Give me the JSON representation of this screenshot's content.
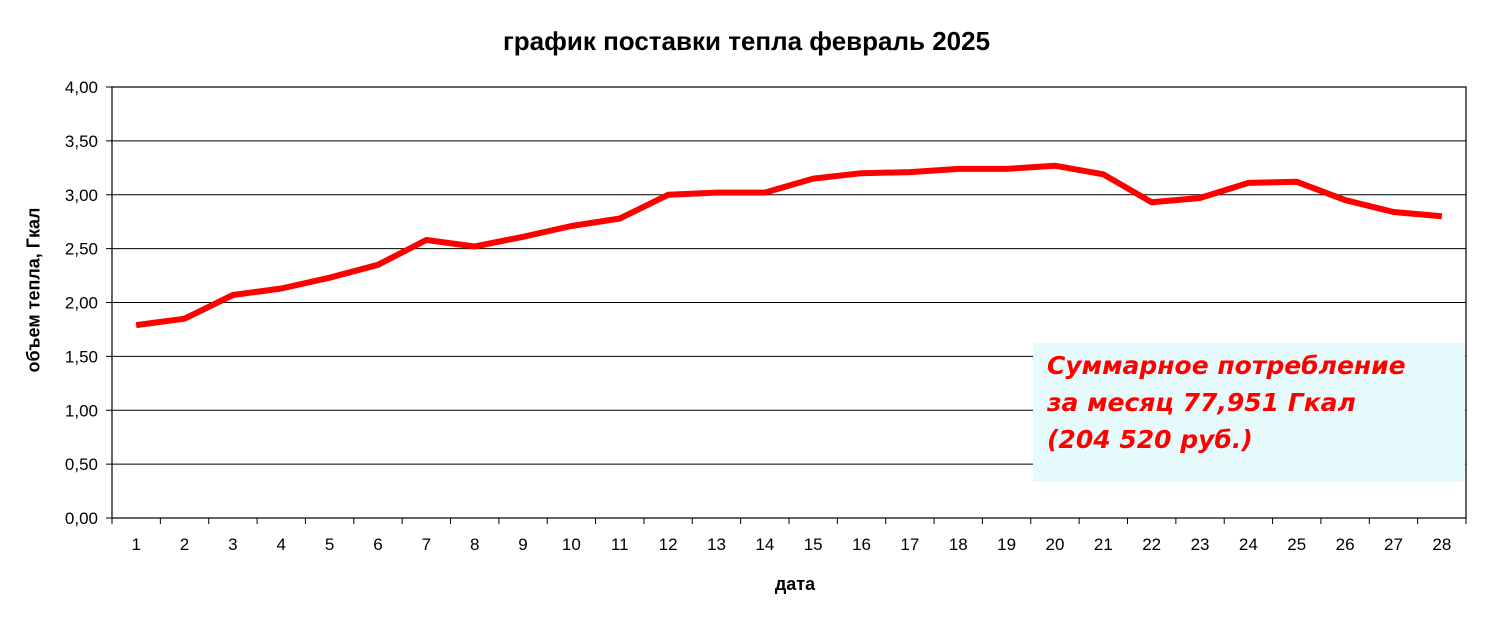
{
  "chart_data": {
    "type": "line",
    "title": "график поставки тепла февраль 2025",
    "xlabel": "дата",
    "ylabel": "объем тепла, Гкал",
    "ylim": [
      0,
      4
    ],
    "y_ticks": [
      "0,00",
      "0,50",
      "1,00",
      "1,50",
      "2,00",
      "2,50",
      "3,00",
      "3,50",
      "4,00"
    ],
    "grid": "horizontal",
    "categories": [
      "1",
      "2",
      "3",
      "4",
      "5",
      "6",
      "7",
      "8",
      "9",
      "10",
      "11",
      "12",
      "13",
      "14",
      "15",
      "16",
      "17",
      "18",
      "19",
      "20",
      "21",
      "22",
      "23",
      "24",
      "25",
      "26",
      "27",
      "28"
    ],
    "series": [
      {
        "color": "#ff0000",
        "values": [
          1.79,
          1.85,
          2.07,
          2.13,
          2.23,
          2.35,
          2.58,
          2.52,
          2.61,
          2.71,
          2.78,
          3.0,
          3.02,
          3.02,
          3.15,
          3.2,
          3.21,
          3.24,
          3.24,
          3.27,
          3.19,
          2.93,
          2.97,
          3.11,
          3.12,
          2.95,
          2.84,
          2.8
        ]
      }
    ],
    "annotation": {
      "lines": [
        "Суммарное потребление",
        "за месяц 77,951 Гкал",
        "(204 520 руб.)"
      ],
      "color": "#ff0000",
      "background": "#e6fafb"
    }
  }
}
